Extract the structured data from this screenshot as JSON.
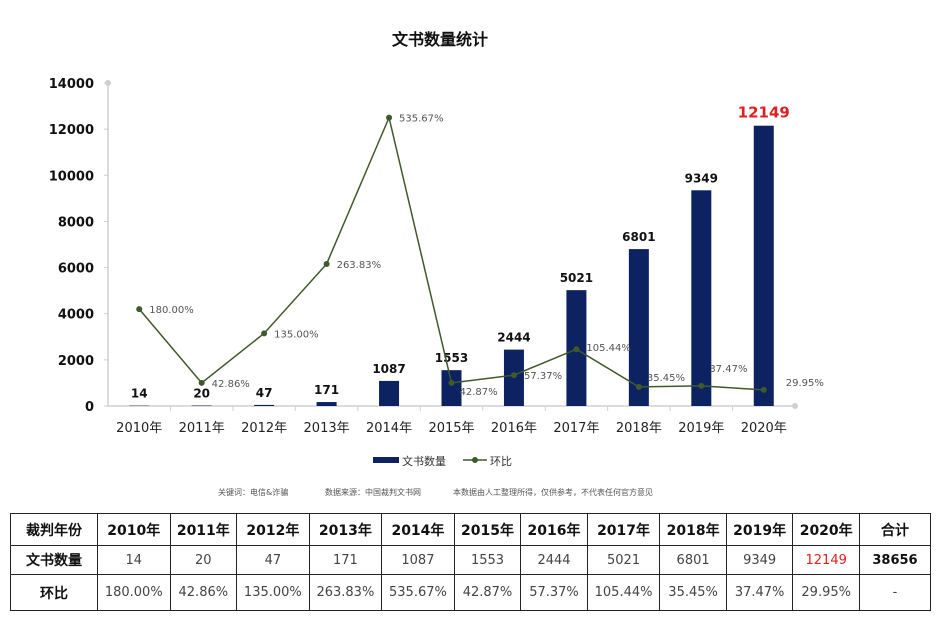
{
  "chart_data": {
    "type": "bar+line",
    "title": "文书数量统计",
    "categories": [
      "2010年",
      "2011年",
      "2012年",
      "2013年",
      "2014年",
      "2015年",
      "2016年",
      "2017年",
      "2018年",
      "2019年",
      "2020年"
    ],
    "series": [
      {
        "name": "文书数量",
        "type": "bar",
        "color": "#0d2260",
        "values": [
          14,
          20,
          47,
          171,
          1087,
          1553,
          2444,
          5021,
          6801,
          9349,
          12149
        ],
        "labels": [
          "14",
          "20",
          "47",
          "171",
          "1087",
          "1553",
          "2444",
          "5021",
          "6801",
          "9349",
          "12149"
        ]
      },
      {
        "name": "环比",
        "type": "line",
        "color": "#3f5a2a",
        "axis": "secondary",
        "values": [
          180.0,
          42.86,
          135.0,
          263.83,
          535.67,
          42.87,
          57.37,
          105.44,
          35.45,
          37.47,
          29.95
        ],
        "labels": [
          "180.00%",
          "42.86%",
          "135.00%",
          "263.83%",
          "535.67%",
          "42.87%",
          "57.37%",
          "105.44%",
          "35.45%",
          "37.47%",
          "29.95%"
        ]
      }
    ],
    "ylim": [
      0,
      14000
    ],
    "y2lim": [
      0,
      600
    ],
    "yticks": [
      "0",
      "2000",
      "4000",
      "6000",
      "8000",
      "10000",
      "12000",
      "14000"
    ],
    "highlight_color": "#e02020",
    "legend": "bottom",
    "grid": false
  },
  "footnotes": {
    "keywords": "关键词：电信&诈骗",
    "source": "数据来源：中国裁判文书网",
    "disclaimer": "本数据由人工整理所得，仅供参考，不代表任何官方意见"
  },
  "table": {
    "header": [
      "裁判年份",
      "2010年",
      "2011年",
      "2012年",
      "2013年",
      "2014年",
      "2015年",
      "2016年",
      "2017年",
      "2018年",
      "2019年",
      "2020年",
      "合计"
    ],
    "count": [
      "文书数量",
      "14",
      "20",
      "47",
      "171",
      "1087",
      "1553",
      "2444",
      "5021",
      "6801",
      "9349",
      "12149",
      "38656"
    ],
    "ratio": [
      "环比",
      "180.00%",
      "42.86%",
      "135.00%",
      "263.83%",
      "535.67%",
      "42.87%",
      "57.37%",
      "105.44%",
      "35.45%",
      "37.47%",
      "29.95%",
      "-"
    ]
  }
}
